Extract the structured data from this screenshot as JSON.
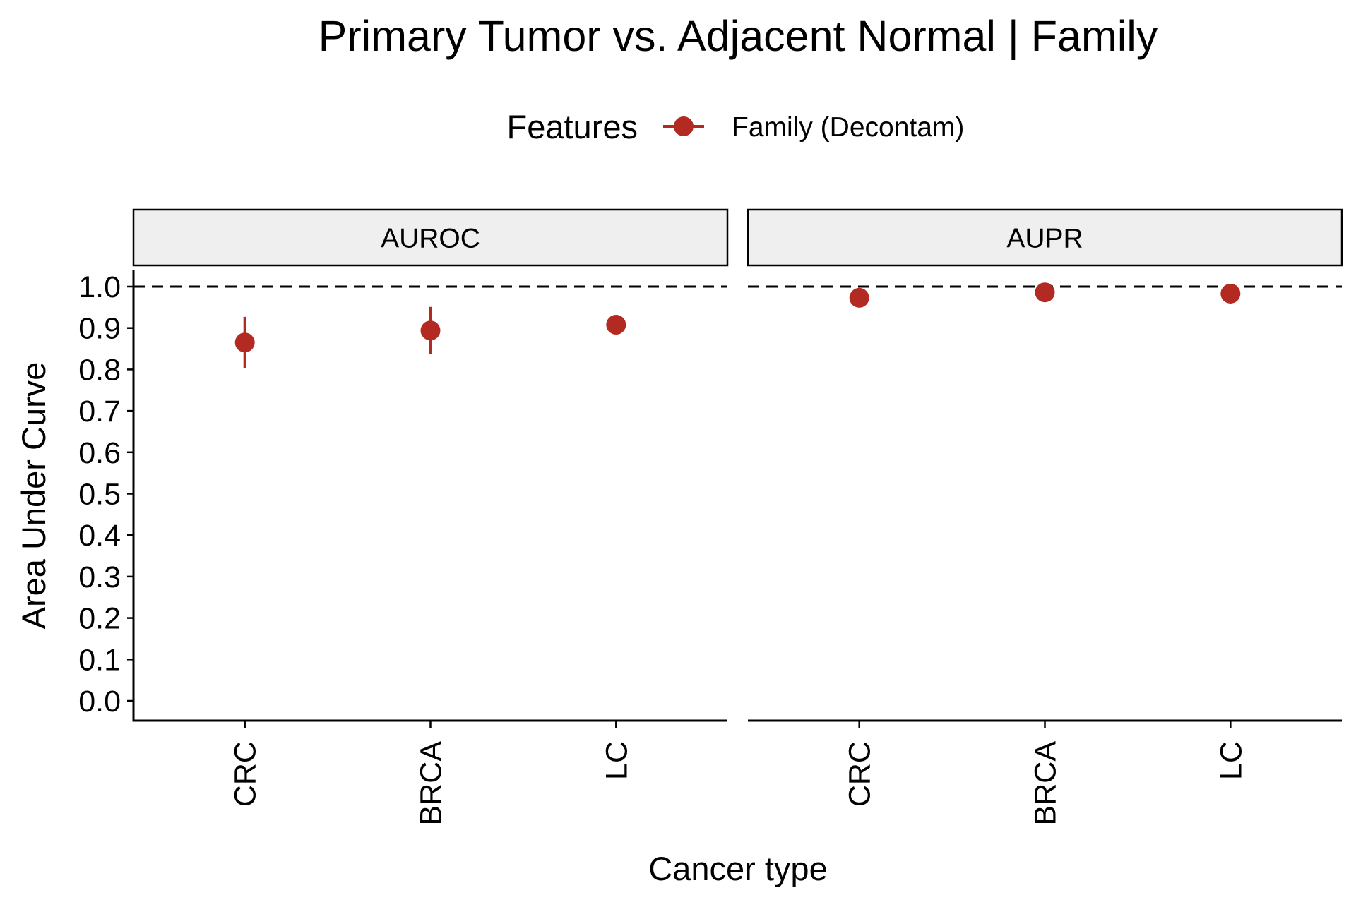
{
  "chart_data": {
    "type": "scatter",
    "title": "Primary Tumor vs. Adjacent Normal | Family",
    "xlabel": "Cancer type",
    "ylabel": "Area Under Curve",
    "ylim": [
      0,
      1
    ],
    "yticks": [
      "0.0",
      "0.1",
      "0.2",
      "0.3",
      "0.4",
      "0.5",
      "0.6",
      "0.7",
      "0.8",
      "0.9",
      "1.0"
    ],
    "categories": [
      "CRC",
      "BRCA",
      "LC"
    ],
    "reference_line": 1.0,
    "legend": {
      "title": "Features",
      "placement": "top",
      "entries": [
        {
          "label": "Family (Decontam)",
          "color": "#B22A22"
        }
      ]
    },
    "panels": [
      {
        "strip": "AUROC",
        "series": [
          {
            "name": "Family (Decontam)",
            "points": [
              {
                "category": "CRC",
                "value": 0.865,
                "lower": 0.803,
                "upper": 0.927
              },
              {
                "category": "BRCA",
                "value": 0.894,
                "lower": 0.837,
                "upper": 0.951
              },
              {
                "category": "LC",
                "value": 0.908,
                "lower": 0.908,
                "upper": 0.908
              }
            ]
          }
        ]
      },
      {
        "strip": "AUPR",
        "series": [
          {
            "name": "Family (Decontam)",
            "points": [
              {
                "category": "CRC",
                "value": 0.973,
                "lower": 0.973,
                "upper": 0.973
              },
              {
                "category": "BRCA",
                "value": 0.986,
                "lower": 0.986,
                "upper": 0.986
              },
              {
                "category": "LC",
                "value": 0.983,
                "lower": 0.983,
                "upper": 0.983
              }
            ]
          }
        ]
      }
    ],
    "colors": {
      "series": "#B22A22",
      "strip_fill": "#EFEFEF",
      "axis": "#000000"
    }
  }
}
